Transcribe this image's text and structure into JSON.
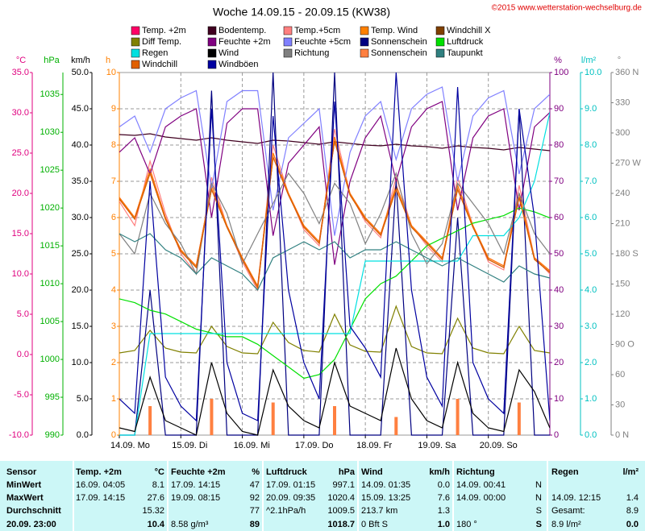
{
  "chart_data": {
    "type": "line",
    "title": "Woche 14.09.15 - 20.09.15 (KW38)",
    "copyright": "©2015 www.wetterstation-wechselburg.de",
    "grid": true,
    "x": [
      0,
      6,
      12,
      18,
      24,
      30,
      36,
      42,
      48,
      54,
      60,
      66,
      72,
      78,
      84,
      90,
      96,
      102,
      108,
      114,
      120,
      126,
      132,
      138,
      144,
      150,
      156,
      162,
      168
    ],
    "xlim": [
      0,
      168
    ],
    "xticks": [
      {
        "value": 0,
        "label": "14.09. Mo"
      },
      {
        "value": 24,
        "label": "15.09. Di"
      },
      {
        "value": 48,
        "label": "16.09. Mi"
      },
      {
        "value": 72,
        "label": "17.09. Do"
      },
      {
        "value": 96,
        "label": "18.09. Fr"
      },
      {
        "value": 120,
        "label": "19.09. Sa"
      },
      {
        "value": 144,
        "label": "20.09. So"
      }
    ],
    "axes": {
      "temp": {
        "label": "°C",
        "color": "#e0007f",
        "side": "left",
        "lim": [
          -10,
          35
        ],
        "ticks": [
          {
            "value": -10,
            "label": "-10.0"
          },
          {
            "value": -5,
            "label": "-5.0"
          },
          {
            "value": 0,
            "label": "0.0"
          },
          {
            "value": 5,
            "label": "5.0"
          },
          {
            "value": 10,
            "label": "10.0"
          },
          {
            "value": 15,
            "label": "15.0"
          },
          {
            "value": 20,
            "label": "20.0"
          },
          {
            "value": 25,
            "label": "25.0"
          },
          {
            "value": 30,
            "label": "30.0"
          },
          {
            "value": 35,
            "label": "35.0"
          }
        ]
      },
      "hpa": {
        "label": "hPa",
        "color": "#00b000",
        "side": "left",
        "lim": [
          990,
          1037.9
        ],
        "ticks": [
          990,
          995,
          1000,
          1005,
          1010,
          1015,
          1020,
          1025,
          1030,
          1035
        ]
      },
      "kmh": {
        "label": "km/h",
        "color": "#000000",
        "side": "left",
        "lim": [
          0,
          50
        ],
        "ticks": [
          {
            "value": 0,
            "label": "0.0"
          },
          {
            "value": 5,
            "label": "5.0"
          },
          {
            "value": 10,
            "label": "10.0"
          },
          {
            "value": 15,
            "label": "15.0"
          },
          {
            "value": 20,
            "label": "20.0"
          },
          {
            "value": 25,
            "label": "25.0"
          },
          {
            "value": 30,
            "label": "30.0"
          },
          {
            "value": 35,
            "label": "35.0"
          },
          {
            "value": 40,
            "label": "40.0"
          },
          {
            "value": 45,
            "label": "45.0"
          },
          {
            "value": 50,
            "label": "50.0"
          }
        ]
      },
      "h": {
        "label": "h",
        "color": "#ff8000",
        "side": "left",
        "lim": [
          0,
          10
        ],
        "grid": true,
        "ticks": [
          0,
          1,
          2,
          3,
          4,
          5,
          6,
          7,
          8,
          9,
          10
        ]
      },
      "pct": {
        "label": "%",
        "color": "#800080",
        "side": "right",
        "lim": [
          0,
          100
        ],
        "ticks": [
          0,
          10,
          20,
          30,
          40,
          50,
          60,
          70,
          80,
          90,
          100
        ]
      },
      "rain": {
        "label": "l/m²",
        "color": "#00c0c0",
        "side": "right",
        "lim": [
          0,
          10
        ],
        "ticks": [
          {
            "value": 0,
            "label": "0.0"
          },
          {
            "value": 1,
            "label": "1.0"
          },
          {
            "value": 2,
            "label": "2.0"
          },
          {
            "value": 3,
            "label": "3.0"
          },
          {
            "value": 4,
            "label": "4.0"
          },
          {
            "value": 5,
            "label": "5.0"
          },
          {
            "value": 6,
            "label": "6.0"
          },
          {
            "value": 7,
            "label": "7.0"
          },
          {
            "value": 8,
            "label": "8.0"
          },
          {
            "value": 9,
            "label": "9.0"
          },
          {
            "value": 10,
            "label": "10.0"
          }
        ]
      },
      "deg": {
        "label": "°",
        "color": "#808080",
        "side": "right",
        "lim": [
          0,
          360
        ],
        "ticks": [
          {
            "value": 0,
            "label": "0 N"
          },
          30,
          60,
          {
            "value": 90,
            "label": "90 O"
          },
          120,
          150,
          {
            "value": 180,
            "label": "180 S"
          },
          210,
          240,
          {
            "value": 270,
            "label": "270 W"
          },
          300,
          330,
          {
            "value": 360,
            "label": "360 N"
          }
        ]
      }
    },
    "series": [
      {
        "name": "Temp. +2m",
        "color": "#ff0066",
        "axis": "temp",
        "values": [
          19.5,
          17,
          23,
          17,
          13,
          11,
          21,
          16,
          12,
          8.5,
          25,
          20,
          16,
          14,
          27,
          20,
          17,
          15,
          21,
          16,
          14,
          12,
          21,
          16,
          12,
          11,
          20,
          12,
          10.4
        ]
      },
      {
        "name": "Bodentemp.",
        "color": "#400020",
        "axis": "temp",
        "values": [
          27.3,
          27.2,
          27.4,
          27,
          26.8,
          26.6,
          26.9,
          26.6,
          26.4,
          26.2,
          26.6,
          26.5,
          26.3,
          26.1,
          26.4,
          26.2,
          26,
          25.9,
          26.1,
          25.9,
          25.8,
          25.6,
          25.9,
          25.7,
          25.6,
          25.4,
          25.7,
          25.5,
          25.3
        ]
      },
      {
        "name": "Temp.+5cm",
        "color": "#ff8080",
        "axis": "temp",
        "values": [
          19,
          16,
          24,
          17.5,
          12.5,
          10,
          22,
          16,
          11.5,
          8,
          26,
          20,
          15.5,
          13.5,
          28,
          20,
          16.5,
          14.5,
          22,
          16,
          13.5,
          11.5,
          22,
          16,
          11.5,
          10.5,
          21,
          12,
          10
        ]
      },
      {
        "name": "Temp. Wind",
        "color": "#ff8000",
        "axis": "temp",
        "values": [
          19.5,
          17,
          23,
          17,
          13,
          11,
          21,
          16,
          12,
          8.5,
          25,
          20,
          16,
          14,
          27,
          20,
          17,
          15,
          21,
          16,
          14,
          12,
          21,
          16,
          12,
          11,
          20,
          12,
          10.4
        ]
      },
      {
        "name": "Windchill X",
        "color": "#804000",
        "axis": "temp",
        "values": [
          19.3,
          16.8,
          22.5,
          16.8,
          12.8,
          10.8,
          20.5,
          15.8,
          11.8,
          8.3,
          24.5,
          19.8,
          15.8,
          13.8,
          26.5,
          19.8,
          16.8,
          14.8,
          20.5,
          15.8,
          13.8,
          11.8,
          20.5,
          15.8,
          11.8,
          10.8,
          19.5,
          11.8,
          10.2
        ]
      },
      {
        "name": "Diff Temp.",
        "color": "#808000",
        "axis": "temp",
        "values": [
          0.2,
          0.5,
          3,
          0.8,
          0.3,
          0.2,
          3.5,
          1,
          0.2,
          0.1,
          4,
          1.5,
          0.5,
          0.3,
          5,
          1.2,
          0.4,
          0.3,
          6,
          1,
          0.2,
          0.1,
          4.5,
          0.8,
          0.2,
          0.1,
          3.5,
          0.5,
          0.2
        ]
      },
      {
        "name": "Feuchte +2m",
        "color": "#800080",
        "axis": "pct",
        "values": [
          78,
          82,
          72,
          85,
          88,
          90,
          60,
          86,
          90,
          90,
          55,
          75,
          80,
          85,
          47,
          70,
          82,
          88,
          70,
          85,
          90,
          92,
          62,
          82,
          88,
          90,
          62,
          85,
          89
        ]
      },
      {
        "name": "Feuchte +5cm",
        "color": "#8080ff",
        "axis": "pct",
        "values": [
          85,
          88,
          78,
          90,
          93,
          95,
          68,
          92,
          95,
          95,
          62,
          82,
          86,
          90,
          55,
          78,
          88,
          92,
          76,
          90,
          94,
          96,
          70,
          88,
          93,
          95,
          72,
          90,
          94
        ]
      },
      {
        "name": "Sonnenschein",
        "color": "#000080",
        "axis": "pct",
        "values": [
          0,
          0,
          40,
          0,
          0,
          0,
          95,
          0,
          0,
          0,
          100,
          0,
          0,
          0,
          100,
          0,
          0,
          0,
          70,
          0,
          0,
          0,
          60,
          0,
          0,
          0,
          90,
          0,
          0
        ]
      },
      {
        "name": "Luftdruck",
        "color": "#00e000",
        "axis": "hpa",
        "values": [
          1008,
          1007.5,
          1006.5,
          1006,
          1005,
          1004,
          1003.5,
          1003,
          1003,
          1002,
          1000.5,
          999,
          997.5,
          998,
          1000,
          1004,
          1008,
          1010,
          1011,
          1013,
          1015,
          1016,
          1017,
          1018,
          1018.5,
          1019,
          1020,
          1019.5,
          1018.7
        ]
      },
      {
        "name": "Regen",
        "color": "#00e0e0",
        "axis": "rain",
        "values": [
          0,
          0,
          2.8,
          2.8,
          2.8,
          2.8,
          2.8,
          2.8,
          2.8,
          2.8,
          2.8,
          2.8,
          2.8,
          2.8,
          2.8,
          2.8,
          4.8,
          4.8,
          4.8,
          4.8,
          4.8,
          4.8,
          4.8,
          5.5,
          5.5,
          5.5,
          6,
          7,
          8.9
        ]
      },
      {
        "name": "Wind",
        "color": "#000000",
        "axis": "kmh",
        "values": [
          1,
          0.5,
          8,
          2,
          1,
          0,
          10,
          3,
          0.5,
          0,
          9,
          4,
          2,
          1,
          10,
          4,
          3,
          2,
          12,
          5,
          2,
          1,
          10,
          3,
          1,
          0.5,
          9,
          6,
          1
        ]
      },
      {
        "name": "Richtung",
        "color": "#808080",
        "axis": "deg",
        "values": [
          200,
          180,
          240,
          210,
          190,
          160,
          250,
          220,
          170,
          200,
          230,
          260,
          240,
          210,
          250,
          230,
          190,
          220,
          260,
          200,
          170,
          190,
          250,
          230,
          210,
          180,
          240,
          200,
          180
        ]
      },
      {
        "name": "Sonnenschein",
        "color": "#ff8040",
        "axis": "h",
        "style": "bar",
        "values": [
          0,
          0,
          0.8,
          0,
          0,
          0,
          1,
          0,
          0,
          0,
          0.9,
          0,
          0,
          0,
          0.8,
          0,
          0,
          0,
          0.5,
          0,
          0,
          0,
          1,
          0,
          0,
          0,
          0.9,
          0,
          0
        ]
      },
      {
        "name": "Taupunkt",
        "color": "#308080",
        "axis": "temp",
        "values": [
          15,
          14,
          15,
          13,
          12,
          10,
          12,
          11,
          10,
          8,
          12,
          13,
          14,
          13,
          14,
          12,
          13,
          13,
          14,
          13,
          12,
          11,
          12,
          11,
          10,
          9,
          11,
          10,
          9.5
        ]
      },
      {
        "name": "Windchill",
        "color": "#e06000",
        "axis": "temp",
        "values": [
          19.3,
          16.8,
          22.5,
          16.8,
          12.8,
          10.8,
          20.5,
          15.8,
          11.8,
          8.3,
          24.5,
          19.8,
          15.8,
          13.8,
          26.5,
          19.8,
          16.8,
          14.8,
          20.5,
          15.8,
          13.8,
          11.8,
          20.5,
          15.8,
          11.8,
          10.8,
          19.5,
          11.8,
          10.2
        ]
      },
      {
        "name": "Windböen",
        "color": "#0000a0",
        "axis": "kmh",
        "values": [
          5,
          3,
          35,
          8,
          4,
          2,
          45,
          10,
          3,
          2,
          44,
          20,
          10,
          5,
          46,
          15,
          12,
          8,
          50,
          20,
          8,
          4,
          48,
          10,
          5,
          3,
          45,
          30,
          2
        ]
      }
    ],
    "legend_order": [
      [
        0,
        1,
        2,
        3,
        4
      ],
      [
        5,
        6,
        7,
        8,
        9
      ],
      [
        10,
        11,
        12,
        13,
        14
      ],
      [
        15,
        16
      ]
    ]
  },
  "table": {
    "rows": [
      [
        "Sensor",
        "Temp. +2m",
        "°C",
        "Feuchte +2m",
        "%",
        "Luftdruck",
        "hPa",
        "Wind",
        "km/h",
        "Richtung",
        null,
        "Regen",
        "l/m²"
      ],
      [
        "MinWert",
        "16.09.  04:05",
        "8.1",
        "17.09.  14:15",
        "47",
        "17.09.  01:15",
        "997.1",
        "14.09.  01:35",
        "0.0",
        "14.09.  00:41",
        "N",
        null,
        null
      ],
      [
        "MaxWert",
        "17.09.  14:15",
        "27.6",
        "19.09.  08:15",
        "92",
        "20.09.  09:35",
        "1020.4",
        "15.09.  13:25",
        "7.6",
        "14.09.  00:00",
        "N",
        "14.09.  12:15",
        "1.4"
      ],
      [
        "Durchschnitt",
        null,
        "15.32",
        null,
        "77",
        "^2.1hPa/h",
        "1009.5",
        "213.7 km",
        "1.3",
        null,
        "S",
        "Gesamt:",
        "8.9"
      ],
      [
        "20.09. 23:00",
        null,
        "10.4",
        "8.58 g/m³",
        "89",
        null,
        "1018.7",
        "0 Bft S",
        "1.0",
        "180 °",
        "S",
        "8.9 l/m²",
        "0.0"
      ]
    ]
  }
}
